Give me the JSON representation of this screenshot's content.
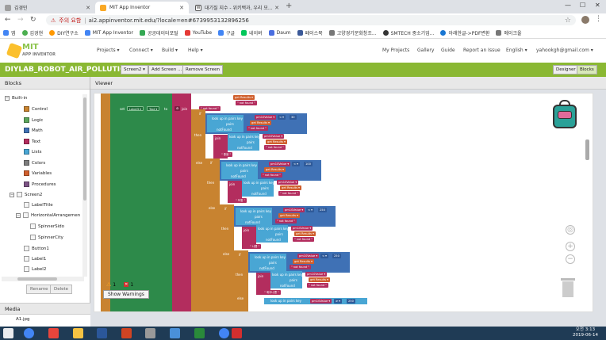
{
  "browser": {
    "tabs": [
      {
        "label": "김경민",
        "color": "#9e9e9e"
      },
      {
        "label": "MIT App Inventor",
        "color": "#f9a825"
      },
      {
        "label": "대기질 지수 - 위키백과, 우리 모...",
        "color": "#555555"
      }
    ],
    "address": {
      "warning": "주의 요함",
      "url": "ai2.appinventor.mit.edu/?locale=en#6739953132896256"
    },
    "bookmarks": [
      "앱",
      "김경현",
      "DIY연구소",
      "MIT App Inventor",
      "공공데이터포털",
      "YouTube",
      "구글",
      "네이버",
      "Daum",
      "페이스북",
      "고양경기문화창조...",
      "SMTECH 중소기업...",
      "아래한글->PDF변환",
      "메이크올"
    ]
  },
  "appinventor": {
    "logo_main": "MIT",
    "logo_sub": "APP INVENTOR",
    "menu": [
      "Projects ▾",
      "Connect ▾",
      "Build ▾",
      "Help ▾"
    ],
    "right_menu": [
      "My Projects",
      "Gallery",
      "Guide",
      "Report an Issue",
      "English ▾",
      "yahookgh@gmail.com ▾"
    ]
  },
  "project": {
    "name": "DIYLAB_ROBOT_AIR_POLLUTION1",
    "screen_selector": "Screen2 ▾",
    "add_screen": "Add Screen ...",
    "remove_screen": "Remove Screen",
    "designer": "Designer",
    "blocks": "Blocks"
  },
  "blocks_panel": {
    "title": "Blocks",
    "builtin": "Built-in",
    "categories": [
      {
        "label": "Control",
        "color": "#c88330"
      },
      {
        "label": "Logic",
        "color": "#5ba55b"
      },
      {
        "label": "Math",
        "color": "#3f71b5"
      },
      {
        "label": "Text",
        "color": "#b32d5e"
      },
      {
        "label": "Lists",
        "color": "#49a6d4"
      },
      {
        "label": "Colors",
        "color": "#7d7d7d"
      },
      {
        "label": "Variables",
        "color": "#d05f2d"
      },
      {
        "label": "Procedures",
        "color": "#7c5385"
      }
    ],
    "components": [
      "Screen2",
      "HorizontalArrangemen",
      "SpinnerSido",
      "SpinnerCity",
      "Button1",
      "Label1",
      "Label2"
    ],
    "first_component": "LabelTitle",
    "rename": "Rename",
    "delete": "Delete"
  },
  "media": {
    "title": "Media",
    "items": [
      "A1.jpg"
    ]
  },
  "viewer": {
    "title": "Viewer",
    "warnings_count": "1",
    "errors_count": "1",
    "show_warnings": "Show Warnings",
    "block_texts": {
      "set": "set",
      "label": "Label3 ▾",
      "text": "Text ▾",
      "to": "to",
      "join": "join",
      "lookup": "look up in pairs  key",
      "pairs": "pairs",
      "notfound": "notFound",
      "get_result": "get Results ▾",
      "not_found": "\" not found \"",
      "pm10": "pm10Value ▾",
      "lt": "< ▾",
      "ge": "≥ ▾",
      "if": "if",
      "then": "then",
      "else": "else",
      "v30": "30",
      "v80": "80",
      "v150": "150",
      "v100": "100",
      "v250": "250"
    }
  },
  "taskbar": {
    "time": "오전 3:13",
    "date": "2019-06-14"
  }
}
